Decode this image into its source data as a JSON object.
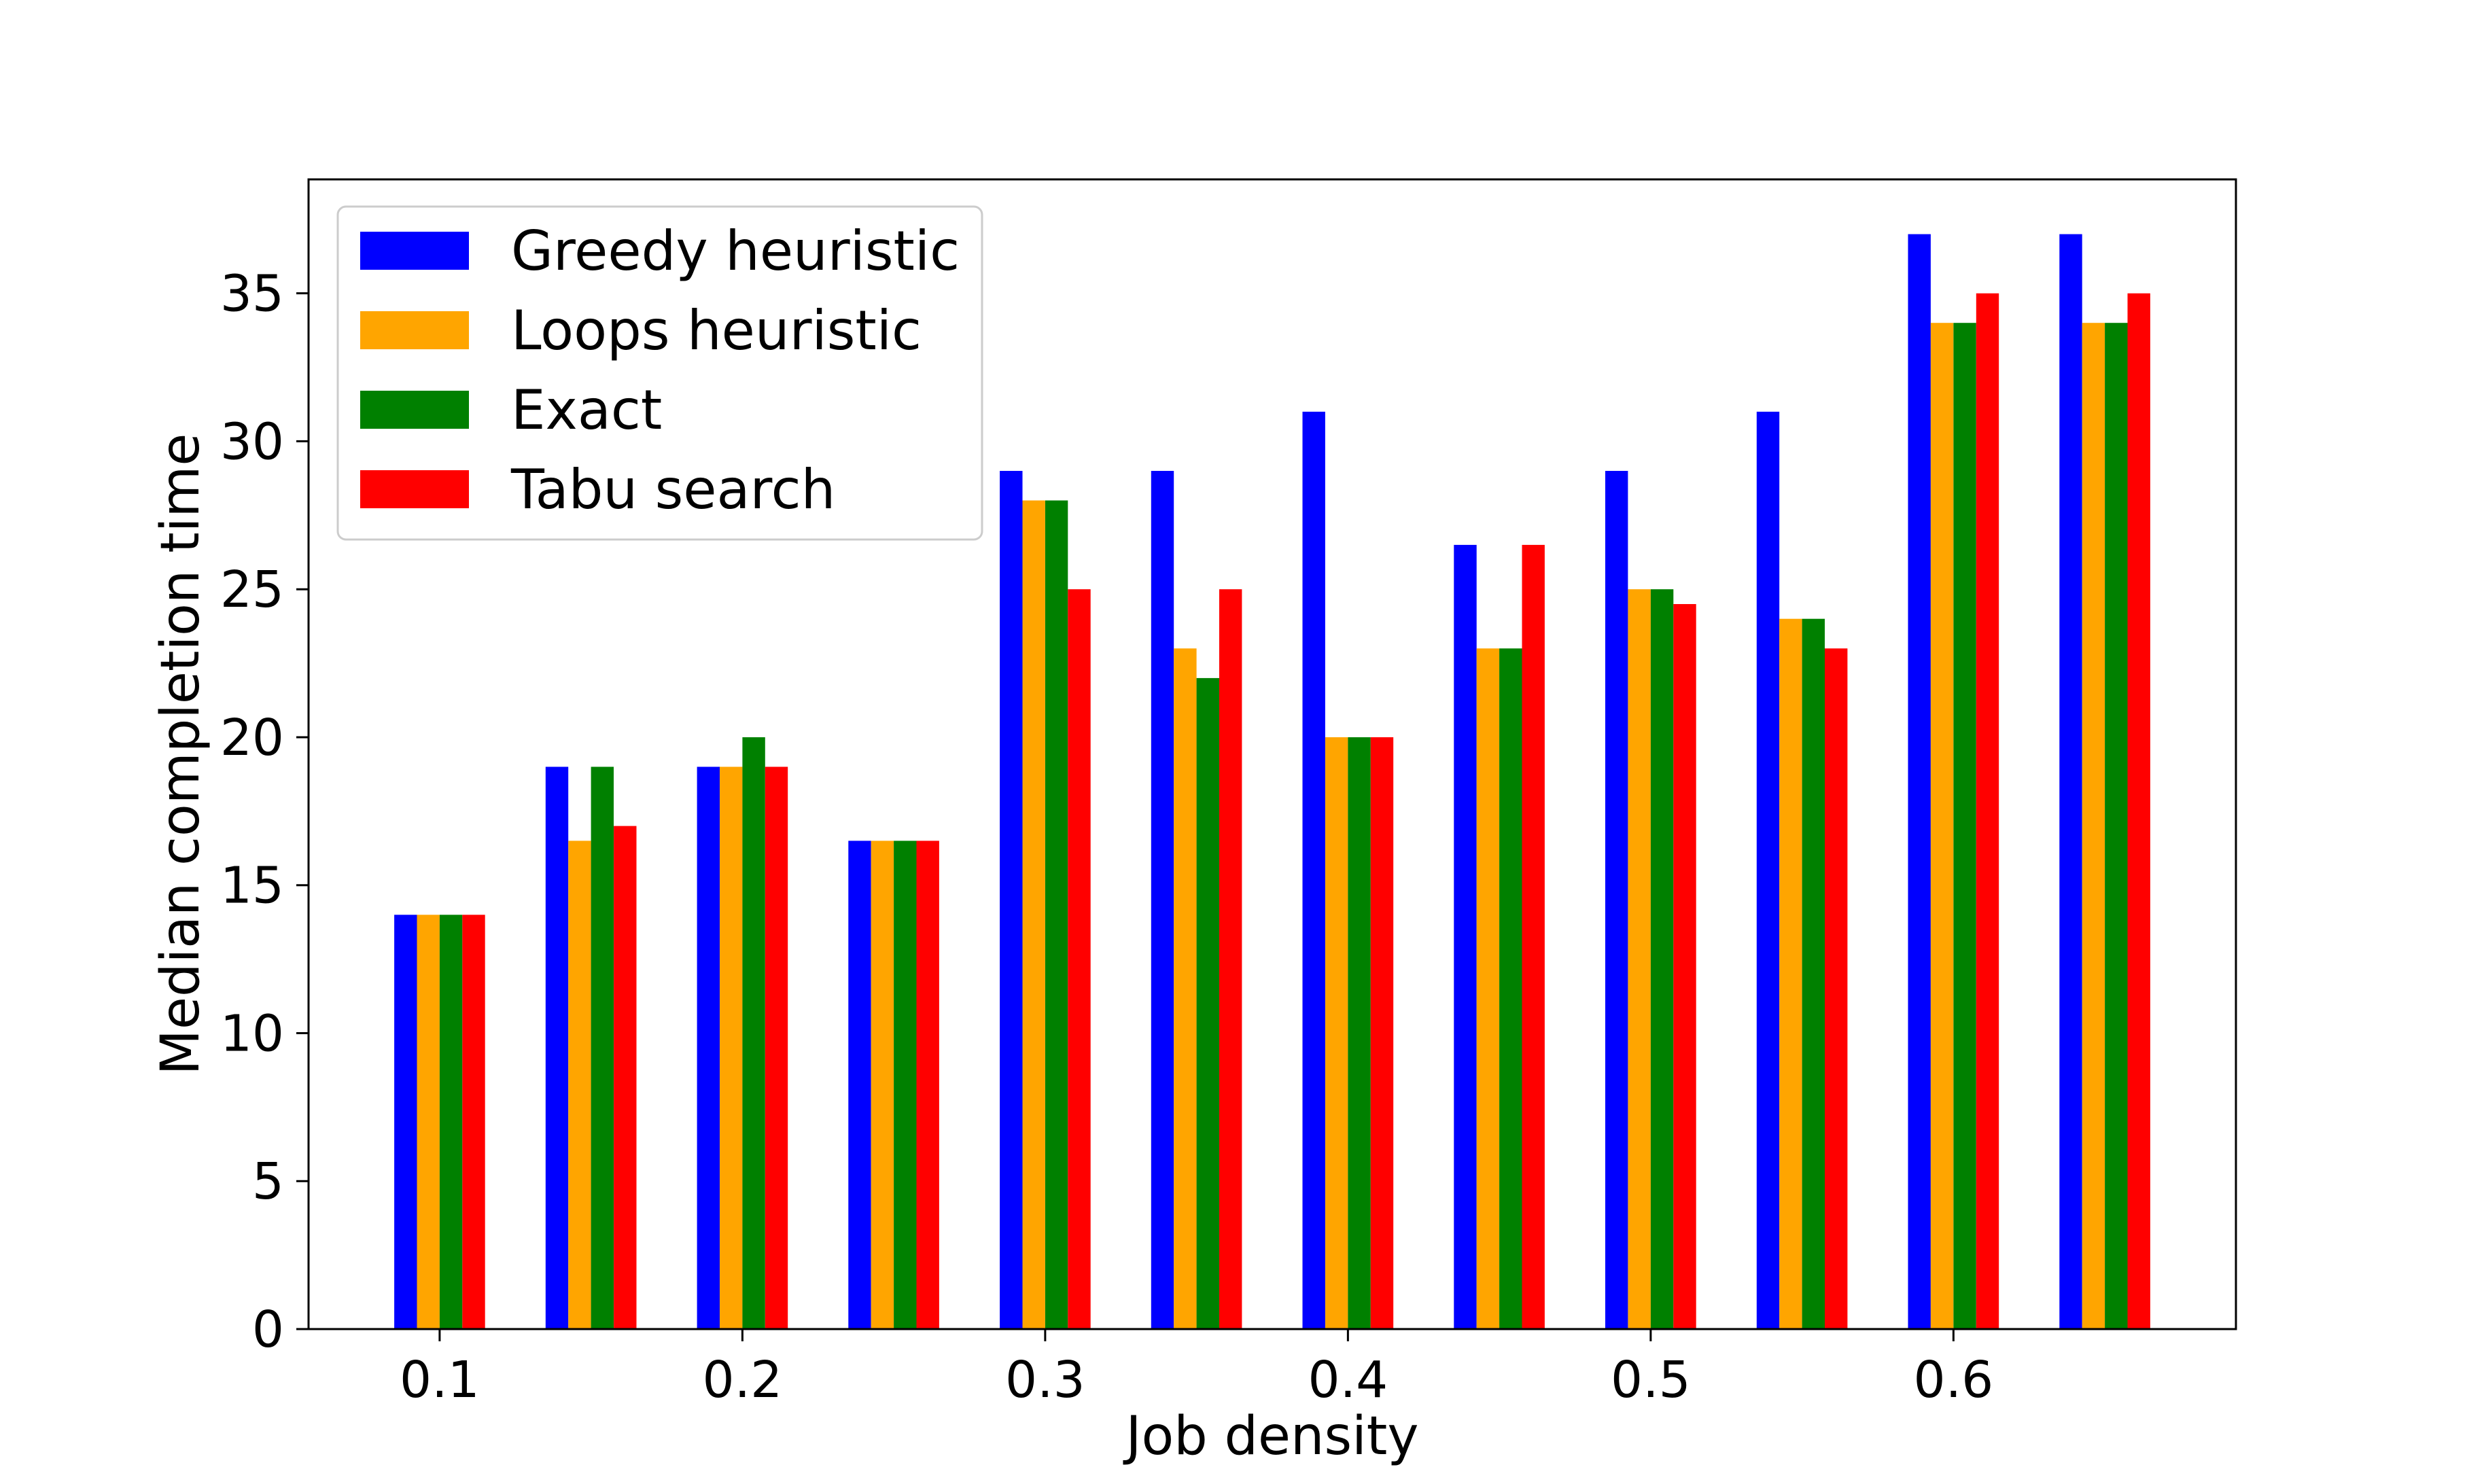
{
  "chart_data": {
    "type": "bar",
    "title": "",
    "xlabel": "Job density",
    "ylabel": "Median completion time",
    "categories": [
      "0.10",
      "0.15",
      "0.20",
      "0.25",
      "0.30",
      "0.35",
      "0.40",
      "0.45",
      "0.50",
      "0.55",
      "0.60",
      "0.65"
    ],
    "x_ticks": [
      0.1,
      0.2,
      0.3,
      0.4,
      0.5,
      0.6
    ],
    "x_tick_labels": [
      "0.1",
      "0.2",
      "0.3",
      "0.4",
      "0.5",
      "0.6"
    ],
    "xlim": [
      0.0567,
      0.6933
    ],
    "y_ticks": [
      0,
      5,
      10,
      15,
      20,
      25,
      30,
      35
    ],
    "y_tick_labels": [
      "0",
      "5",
      "10",
      "15",
      "20",
      "25",
      "30",
      "35"
    ],
    "ylim": [
      0,
      38.85
    ],
    "grid": false,
    "legend_position": "top-left",
    "series": [
      {
        "name": "Greedy heuristic",
        "color": "#0000ff",
        "values": [
          14,
          19,
          19,
          16.5,
          29,
          29,
          31,
          26.5,
          29,
          31,
          37,
          37
        ]
      },
      {
        "name": "Loops heuristic",
        "color": "#ffa500",
        "values": [
          14,
          16.5,
          19,
          16.5,
          28,
          23,
          20,
          23,
          25,
          24,
          34,
          34
        ]
      },
      {
        "name": "Exact",
        "color": "#008000",
        "values": [
          14,
          19,
          20,
          16.5,
          28,
          22,
          20,
          23,
          25,
          24,
          34,
          34
        ]
      },
      {
        "name": "Tabu search",
        "color": "#ff0000",
        "values": [
          14,
          17,
          19,
          16.5,
          25,
          25,
          20,
          26.5,
          24.5,
          23,
          35,
          35
        ]
      }
    ]
  }
}
